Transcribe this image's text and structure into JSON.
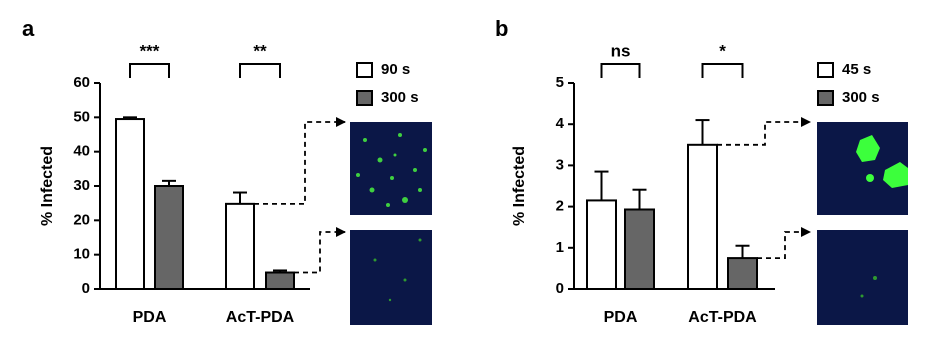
{
  "chart_data": [
    {
      "type": "bar",
      "panel": "a",
      "ylabel": "% Infected",
      "categories": [
        "PDA",
        "AcT-PDA"
      ],
      "series": [
        {
          "name": "90 s",
          "color": "#ffffff",
          "values": [
            49.5,
            24.8
          ],
          "errors": [
            0.5,
            3.3
          ]
        },
        {
          "name": "300 s",
          "color": "#666666",
          "values": [
            30,
            4.8
          ],
          "errors": [
            1.5,
            0.6
          ]
        }
      ],
      "significance": [
        "***",
        "**"
      ],
      "ylim": [
        0,
        60
      ],
      "yticks": [
        0,
        10,
        20,
        30,
        40,
        50,
        60
      ]
    },
    {
      "type": "bar",
      "panel": "b",
      "ylabel": "% Infected",
      "categories": [
        "PDA",
        "AcT-PDA"
      ],
      "series": [
        {
          "name": "45 s",
          "color": "#ffffff",
          "values": [
            2.15,
            3.5
          ],
          "errors": [
            0.7,
            0.6
          ]
        },
        {
          "name": "300 s",
          "color": "#666666",
          "values": [
            1.93,
            0.75
          ],
          "errors": [
            0.48,
            0.3
          ]
        }
      ],
      "significance": [
        "ns",
        "*"
      ],
      "ylim": [
        0,
        5
      ],
      "yticks": [
        0,
        1,
        2,
        3,
        4,
        5
      ]
    }
  ]
}
